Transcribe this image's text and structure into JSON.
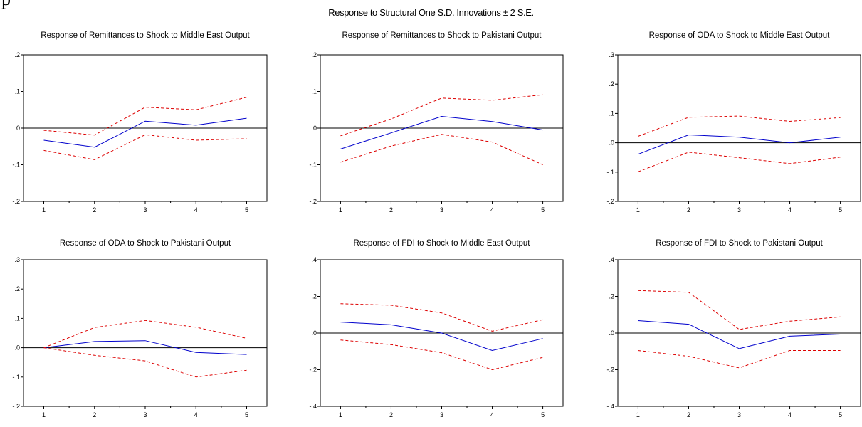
{
  "header_fragment": "p",
  "main_title": "Response to Structural One S.D. Innovations ± 2 S.E.",
  "colors": {
    "response": "#0000cc",
    "bands": "#dd0000",
    "axis": "#000000"
  },
  "chart_data": [
    {
      "type": "line",
      "title": "Response of Remittances to Shock to Middle East Output",
      "x": [
        1,
        2,
        3,
        4,
        5
      ],
      "xlim": [
        0.6,
        5.4
      ],
      "ylim": [
        -0.2,
        0.2
      ],
      "yticks": [
        ".2",
        ".1",
        ".0",
        "-.1",
        "-.2"
      ],
      "ytick_values": [
        0.2,
        0.1,
        0.0,
        -0.1,
        -0.2
      ],
      "series": [
        {
          "role": "response",
          "values": [
            -0.033,
            -0.052,
            0.019,
            0.008,
            0.027
          ]
        },
        {
          "role": "upper",
          "values": [
            -0.006,
            -0.019,
            0.057,
            0.05,
            0.084
          ]
        },
        {
          "role": "lower",
          "values": [
            -0.061,
            -0.086,
            -0.018,
            -0.033,
            -0.029
          ]
        }
      ]
    },
    {
      "type": "line",
      "title": "Response of Remittances to Shock to Pakistani Output",
      "x": [
        1,
        2,
        3,
        4,
        5
      ],
      "xlim": [
        0.6,
        5.4
      ],
      "ylim": [
        -0.2,
        0.2
      ],
      "yticks": [
        ".2",
        ".1",
        ".0",
        "-.1",
        "-.2"
      ],
      "ytick_values": [
        0.2,
        0.1,
        0.0,
        -0.1,
        -0.2
      ],
      "series": [
        {
          "role": "response",
          "values": [
            -0.057,
            -0.013,
            0.032,
            0.018,
            -0.005
          ]
        },
        {
          "role": "upper",
          "values": [
            -0.021,
            0.025,
            0.082,
            0.076,
            0.091
          ]
        },
        {
          "role": "lower",
          "values": [
            -0.093,
            -0.049,
            -0.017,
            -0.038,
            -0.1
          ]
        }
      ]
    },
    {
      "type": "line",
      "title": "Response of ODA to Shock to Middle East Output",
      "x": [
        1,
        2,
        3,
        4,
        5
      ],
      "xlim": [
        0.6,
        5.4
      ],
      "ylim": [
        -0.2,
        0.3
      ],
      "yticks": [
        ".3",
        ".2",
        ".1",
        ".0",
        "-.1",
        "-.2"
      ],
      "ytick_values": [
        0.3,
        0.2,
        0.1,
        0.0,
        -0.1,
        -0.2
      ],
      "series": [
        {
          "role": "response",
          "values": [
            -0.039,
            0.027,
            0.019,
            0.0,
            0.019
          ]
        },
        {
          "role": "upper",
          "values": [
            0.022,
            0.087,
            0.091,
            0.073,
            0.086
          ]
        },
        {
          "role": "lower",
          "values": [
            -0.099,
            -0.032,
            -0.051,
            -0.071,
            -0.049
          ]
        }
      ]
    },
    {
      "type": "line",
      "title": "Response of ODA to Shock to Pakistani Output",
      "x": [
        1,
        2,
        3,
        4,
        5
      ],
      "xlim": [
        0.6,
        5.4
      ],
      "ylim": [
        -0.2,
        0.3
      ],
      "yticks": [
        ".3",
        ".2",
        ".1",
        ".0",
        "-.1",
        "-.2"
      ],
      "ytick_values": [
        0.3,
        0.2,
        0.1,
        0.0,
        -0.1,
        -0.2
      ],
      "series": [
        {
          "role": "response",
          "values": [
            0.0,
            0.021,
            0.024,
            -0.016,
            -0.023
          ]
        },
        {
          "role": "upper",
          "values": [
            0.0,
            0.069,
            0.093,
            0.07,
            0.032
          ]
        },
        {
          "role": "lower",
          "values": [
            0.0,
            -0.026,
            -0.045,
            -0.1,
            -0.077
          ]
        }
      ]
    },
    {
      "type": "line",
      "title": "Response of FDI to Shock to Middle East Output",
      "x": [
        1,
        2,
        3,
        4,
        5
      ],
      "xlim": [
        0.6,
        5.4
      ],
      "ylim": [
        -0.4,
        0.4
      ],
      "yticks": [
        ".4",
        ".2",
        ".0",
        "-.2",
        "-.4"
      ],
      "ytick_values": [
        0.4,
        0.2,
        0.0,
        -0.2,
        -0.4
      ],
      "series": [
        {
          "role": "response",
          "values": [
            0.06,
            0.045,
            0.0,
            -0.095,
            -0.03
          ]
        },
        {
          "role": "upper",
          "values": [
            0.16,
            0.152,
            0.11,
            0.01,
            0.073
          ]
        },
        {
          "role": "lower",
          "values": [
            -0.038,
            -0.063,
            -0.107,
            -0.2,
            -0.133
          ]
        }
      ]
    },
    {
      "type": "line",
      "title": "Response of FDI to Shock to Pakistani Output",
      "x": [
        1,
        2,
        3,
        4,
        5
      ],
      "xlim": [
        0.6,
        5.4
      ],
      "ylim": [
        -0.4,
        0.4
      ],
      "yticks": [
        ".4",
        ".2",
        ".0",
        "-.2",
        "-.4"
      ],
      "ytick_values": [
        0.4,
        0.2,
        0.0,
        -0.2,
        -0.4
      ],
      "series": [
        {
          "role": "response",
          "values": [
            0.068,
            0.048,
            -0.085,
            -0.017,
            -0.006
          ]
        },
        {
          "role": "upper",
          "values": [
            0.232,
            0.222,
            0.02,
            0.065,
            0.088
          ]
        },
        {
          "role": "lower",
          "values": [
            -0.095,
            -0.127,
            -0.19,
            -0.095,
            -0.095
          ]
        }
      ]
    }
  ]
}
